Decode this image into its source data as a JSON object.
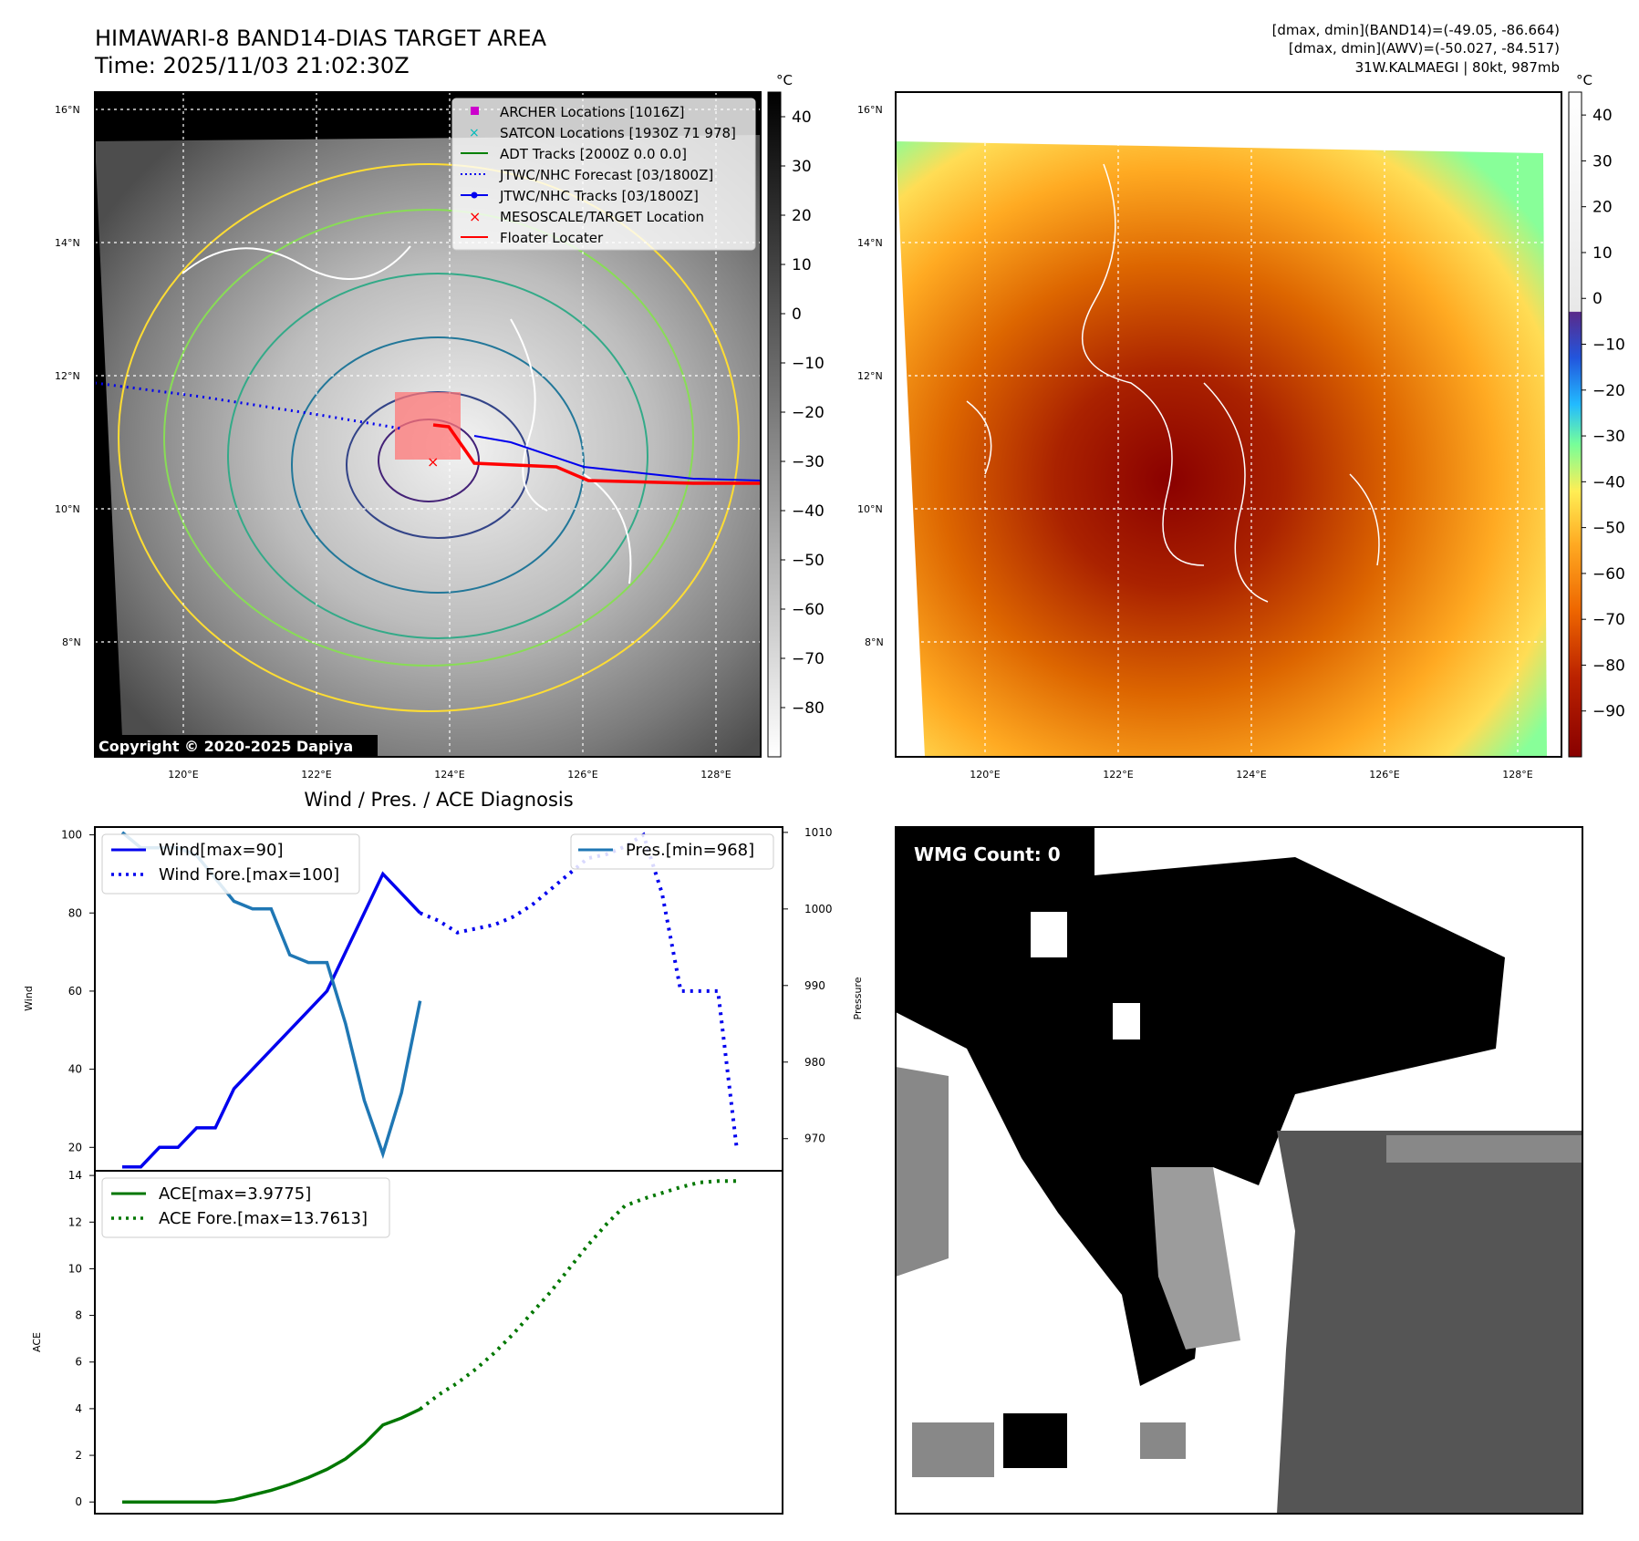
{
  "colors": {
    "wind": "#0000ee",
    "pres": "#1f77b4",
    "ace": "#007700",
    "track_red": "#ff0000",
    "archer": "#cc00cc",
    "satcon": "#00bbbb",
    "adt": "#008000"
  },
  "map1": {
    "title_line1": "HIMAWARI-8 BAND14-DIAS TARGET AREA",
    "title_line2": "Time: 2025/11/03 21:02:30Z",
    "unit": "°C",
    "colorbar_ticks": [
      "40",
      "30",
      "20",
      "10",
      "0",
      "−10",
      "−20",
      "−30",
      "−40",
      "−50",
      "−60",
      "−70",
      "−80"
    ],
    "copyright": "Copyright © 2020-2025 Dapiya",
    "legend": [
      "ARCHER Locations [1016Z]",
      "SATCON Locations [1930Z 71 978]",
      "ADT Tracks [2000Z 0.0 0.0]",
      "JTWC/NHC Forecast [03/1800Z]",
      "JTWC/NHC Tracks [03/1800Z]",
      "MESOSCALE/TARGET Location",
      "Floater Locater"
    ],
    "lat_labels": [
      "16°N",
      "14°N",
      "12°N",
      "10°N",
      "8°N"
    ],
    "lon_labels": [
      "120°E",
      "122°E",
      "124°E",
      "126°E",
      "128°E"
    ]
  },
  "map2": {
    "info_line1": "[dmax, dmin](BAND14)=(-49.05, -86.664)",
    "info_line2": "[dmax, dmin](AWV)=(-50.027, -84.517)",
    "info_line3": "31W.KALMAEGI | 80kt, 987mb",
    "unit": "°C",
    "colorbar_ticks": [
      "40",
      "30",
      "20",
      "10",
      "0",
      "−10",
      "−20",
      "−30",
      "−40",
      "−50",
      "−60",
      "−70",
      "−80",
      "−90"
    ],
    "lat_labels": [
      "16°N",
      "14°N",
      "12°N",
      "10°N",
      "8°N"
    ],
    "lon_labels": [
      "120°E",
      "122°E",
      "124°E",
      "126°E",
      "128°E"
    ]
  },
  "wmg": {
    "label": "WMG Count: 0"
  },
  "chart_data": [
    {
      "type": "line",
      "title": "Wind / Pres. / ACE Diagnosis",
      "ylabel": "Wind",
      "y2label": "Pressure",
      "ylim": [
        14,
        102
      ],
      "y2lim": [
        965.8,
        1010.7
      ],
      "yticks": [
        "20",
        "40",
        "60",
        "80",
        "100"
      ],
      "y2ticks": [
        "970",
        "980",
        "990",
        "1000",
        "1010"
      ],
      "x_range": [
        0,
        34
      ],
      "series": [
        {
          "name": "Wind[max=90]",
          "style": "solid",
          "x": [
            0,
            1,
            2,
            3,
            4,
            5,
            6,
            7,
            8,
            9,
            10,
            11,
            12,
            13,
            14,
            15,
            16
          ],
          "values": [
            15,
            15,
            20,
            20,
            25,
            25,
            35,
            40,
            45,
            50,
            55,
            60,
            70,
            80,
            90,
            85,
            80
          ]
        },
        {
          "name": "Wind Fore.[max=100]",
          "style": "dotted",
          "x": [
            16,
            17,
            18,
            19,
            20,
            21,
            22,
            23,
            24,
            25,
            26,
            27,
            28,
            29,
            30,
            31,
            32,
            33
          ],
          "values": [
            80,
            78,
            75,
            76,
            77,
            79,
            82,
            86,
            90,
            94,
            95,
            97,
            100,
            85,
            60,
            60,
            60,
            20
          ]
        },
        {
          "name": "Pres.[min=968]",
          "style": "solid",
          "x": [
            0,
            1,
            2,
            3,
            4,
            5,
            6,
            7,
            8,
            9,
            10,
            11,
            12,
            13,
            14,
            15,
            16
          ],
          "values": [
            1010,
            1008,
            1008,
            1008,
            1007,
            1004,
            1001,
            1000,
            1000,
            994,
            993,
            993,
            985,
            975,
            968,
            976,
            988
          ]
        }
      ]
    },
    {
      "type": "line",
      "ylabel": "ACE",
      "ylim": [
        -0.5,
        14.2
      ],
      "yticks": [
        "0",
        "2",
        "4",
        "6",
        "8",
        "10",
        "12",
        "14"
      ],
      "x_range": [
        0,
        34
      ],
      "series": [
        {
          "name": "ACE[max=3.9775]",
          "style": "solid",
          "x": [
            0,
            1,
            2,
            3,
            4,
            5,
            6,
            7,
            8,
            9,
            10,
            11,
            12,
            13,
            14,
            15,
            16
          ],
          "values": [
            0,
            0,
            0,
            0,
            0,
            0,
            0.1,
            0.3,
            0.5,
            0.75,
            1.05,
            1.4,
            1.85,
            2.5,
            3.3,
            3.6,
            3.98
          ]
        },
        {
          "name": "ACE Fore.[max=13.7613]",
          "style": "dotted",
          "x": [
            16,
            17,
            18,
            19,
            20,
            21,
            22,
            23,
            24,
            25,
            26,
            27,
            28,
            29,
            30,
            31,
            32,
            33
          ],
          "values": [
            3.98,
            4.6,
            5.1,
            5.7,
            6.4,
            7.2,
            8.1,
            9.0,
            10.0,
            11.0,
            11.9,
            12.7,
            13.0,
            13.25,
            13.5,
            13.7,
            13.76,
            13.7613
          ]
        }
      ]
    }
  ]
}
